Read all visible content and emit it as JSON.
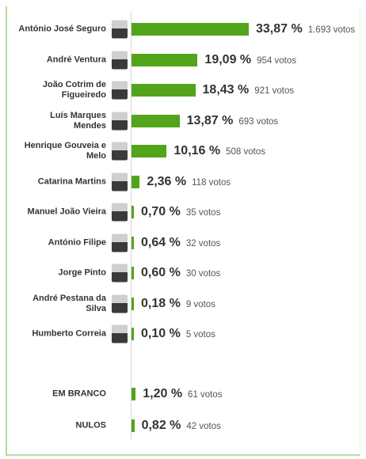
{
  "chart_data": {
    "type": "bar",
    "categories": [
      "António José Seguro",
      "André Ventura",
      "João Cotrim de Figueiredo",
      "Luís Marques Mendes",
      "Henrique Gouveia e Melo",
      "Catarina Martins",
      "Manuel João Vieira",
      "António Filipe",
      "Jorge Pinto",
      "André Pestana da Silva",
      "Humberto Correia",
      "EM BRANCO",
      "NULOS"
    ],
    "values": [
      33.87,
      19.09,
      18.43,
      13.87,
      10.16,
      2.36,
      0.7,
      0.64,
      0.6,
      0.18,
      0.1,
      1.2,
      0.82
    ],
    "value_labels": [
      "33,87 %",
      "19,09 %",
      "18,43 %",
      "13,87 %",
      "10,16 %",
      "2,36 %",
      "0,70 %",
      "0,64 %",
      "0,60 %",
      "0,18 %",
      "0,10 %",
      "1,20 %",
      "0,82 %"
    ],
    "vote_labels": [
      "1.693 votos",
      "954 votos",
      "921 votos",
      "693 votos",
      "508 votos",
      "118 votos",
      "35 votos",
      "32 votos",
      "30 votos",
      "9 votos",
      "5 votos",
      "61 votos",
      "42 votos"
    ],
    "color": "#52a41b"
  }
}
